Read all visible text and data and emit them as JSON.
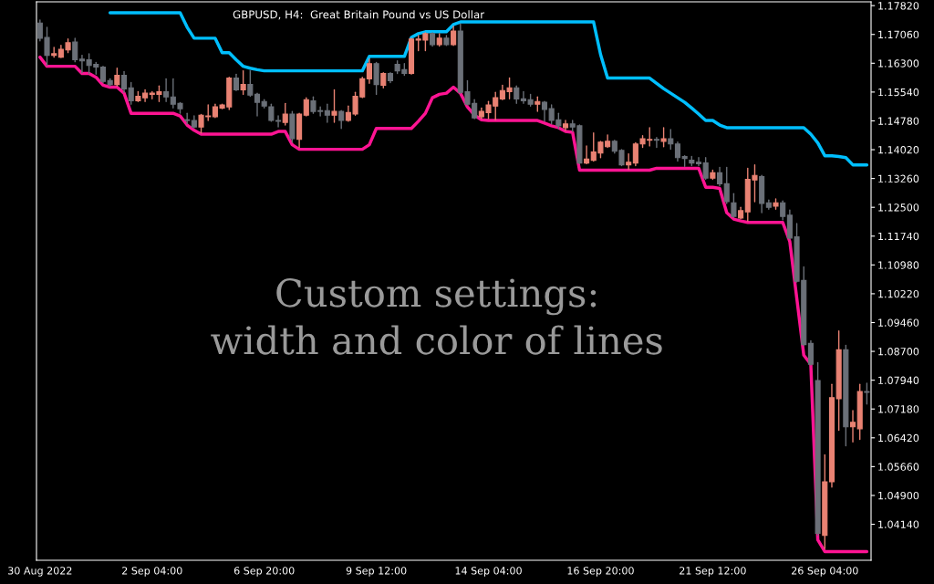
{
  "chart_data": {
    "type": "candlestick",
    "title": "GBPUSD, H4:  Great Britain Pound vs US Dollar",
    "annotations": [
      "Custom settings:\nwidth and color of lines"
    ],
    "categories": [
      "30 Aug 2022",
      null,
      null,
      null,
      null,
      null,
      null,
      null,
      null,
      null,
      null,
      null,
      null,
      null,
      null,
      null,
      "2 Sep 04:00",
      null,
      null,
      null,
      null,
      null,
      null,
      null,
      null,
      null,
      null,
      null,
      null,
      null,
      null,
      null,
      "6 Sep 20:00",
      null,
      null,
      null,
      null,
      null,
      null,
      null,
      null,
      null,
      null,
      null,
      null,
      null,
      null,
      null,
      "9 Sep 12:00",
      null,
      null,
      null,
      null,
      null,
      null,
      null,
      null,
      null,
      null,
      null,
      null,
      null,
      null,
      null,
      "14 Sep 04:00",
      null,
      null,
      null,
      null,
      null,
      null,
      null,
      null,
      null,
      null,
      null,
      null,
      null,
      null,
      null,
      "16 Sep 20:00",
      null,
      null,
      null,
      null,
      null,
      null,
      null,
      null,
      null,
      null,
      null,
      null,
      null,
      null,
      null,
      "21 Sep 12:00",
      null,
      null,
      null,
      null,
      null,
      null,
      null,
      null,
      null,
      null,
      null,
      null,
      null,
      null,
      null,
      "26 Sep 04:00",
      null,
      null,
      null,
      null,
      null,
      null
    ],
    "ohlc": [
      [
        1.1736,
        1.1744,
        1.1689,
        1.1696
      ],
      [
        1.1698,
        1.1725,
        1.1624,
        1.1651
      ],
      [
        1.1651,
        1.1672,
        1.1646,
        1.1655
      ],
      [
        1.1646,
        1.1677,
        1.1645,
        1.1667
      ],
      [
        1.1665,
        1.1694,
        1.1658,
        1.1684
      ],
      [
        1.1686,
        1.1696,
        1.1634,
        1.1639
      ],
      [
        1.1641,
        1.1651,
        1.1605,
        1.1636
      ],
      [
        1.1639,
        1.1655,
        1.1603,
        1.1624
      ],
      [
        1.1627,
        1.1632,
        1.1601,
        1.162
      ],
      [
        1.162,
        1.1622,
        1.1579,
        1.1582
      ],
      [
        1.1584,
        1.1589,
        1.157,
        1.1574
      ],
      [
        1.1574,
        1.1617,
        1.157,
        1.1598
      ],
      [
        1.1598,
        1.1608,
        1.1553,
        1.1562
      ],
      [
        1.1565,
        1.1579,
        1.1522,
        1.1531
      ],
      [
        1.1531,
        1.1555,
        1.1529,
        1.1543
      ],
      [
        1.1539,
        1.156,
        1.1529,
        1.1551
      ],
      [
        1.1548,
        1.1555,
        1.1536,
        1.1551
      ],
      [
        1.1548,
        1.157,
        1.1529,
        1.1555
      ],
      [
        1.1555,
        1.1589,
        1.1529,
        1.1541
      ],
      [
        1.1541,
        1.1589,
        1.1512,
        1.1522
      ],
      [
        1.1524,
        1.1526,
        1.1498,
        1.151
      ],
      [
        1.1481,
        1.1498,
        1.147,
        1.1479
      ],
      [
        1.1479,
        1.1491,
        1.146,
        1.1462
      ],
      [
        1.1462,
        1.1495,
        1.1446,
        1.1493
      ],
      [
        1.1489,
        1.152,
        1.1479,
        1.1491
      ],
      [
        1.1489,
        1.1522,
        1.1487,
        1.1515
      ],
      [
        1.1512,
        1.1522,
        1.151,
        1.152
      ],
      [
        1.1515,
        1.1593,
        1.1508,
        1.1591
      ],
      [
        1.1591,
        1.1601,
        1.1558,
        1.156
      ],
      [
        1.156,
        1.161,
        1.1548,
        1.1574
      ],
      [
        1.1574,
        1.161,
        1.1543,
        1.1546
      ],
      [
        1.1548,
        1.1551,
        1.1491,
        1.1527
      ],
      [
        1.1529,
        1.1534,
        1.1512,
        1.1517
      ],
      [
        1.1515,
        1.1522,
        1.1477,
        1.1479
      ],
      [
        1.1479,
        1.1491,
        1.1462,
        1.1477
      ],
      [
        1.1474,
        1.1524,
        1.1467,
        1.1496
      ],
      [
        1.1496,
        1.1503,
        1.1422,
        1.1431
      ],
      [
        1.1429,
        1.1498,
        1.1408,
        1.1496
      ],
      [
        1.1493,
        1.1539,
        1.1491,
        1.1534
      ],
      [
        1.1531,
        1.1541,
        1.1498,
        1.1503
      ],
      [
        1.1505,
        1.1515,
        1.1491,
        1.1503
      ],
      [
        1.1505,
        1.1522,
        1.1474,
        1.1493
      ],
      [
        1.1493,
        1.156,
        1.1474,
        1.1503
      ],
      [
        1.1503,
        1.1505,
        1.1458,
        1.1479
      ],
      [
        1.1479,
        1.1517,
        1.1477,
        1.15
      ],
      [
        1.1496,
        1.1553,
        1.1493,
        1.1543
      ],
      [
        1.1541,
        1.1593,
        1.1539,
        1.1589
      ],
      [
        1.1589,
        1.1641,
        1.1577,
        1.1629
      ],
      [
        1.1629,
        1.1632,
        1.1548,
        1.1574
      ],
      [
        1.1572,
        1.1605,
        1.1565,
        1.1603
      ],
      [
        1.1603,
        1.1605,
        1.1579,
        1.1584
      ],
      [
        1.1627,
        1.1636,
        1.1603,
        1.161
      ],
      [
        1.1613,
        1.1629,
        1.1598,
        1.1603
      ],
      [
        1.1603,
        1.1696,
        1.1601,
        1.1694
      ],
      [
        1.1691,
        1.1703,
        1.1663,
        1.1694
      ],
      [
        1.1691,
        1.171,
        1.1663,
        1.1708
      ],
      [
        1.1708,
        1.171,
        1.1675,
        1.1679
      ],
      [
        1.1679,
        1.1708,
        1.1675,
        1.1696
      ],
      [
        1.1696,
        1.1703,
        1.1677,
        1.1679
      ],
      [
        1.1679,
        1.1727,
        1.1677,
        1.1715
      ],
      [
        1.1715,
        1.1734,
        1.1551,
        1.1553
      ],
      [
        1.1555,
        1.1584,
        1.152,
        1.1522
      ],
      [
        1.1524,
        1.1534,
        1.1484,
        1.1486
      ],
      [
        1.1489,
        1.1512,
        1.1484,
        1.1503
      ],
      [
        1.15,
        1.1529,
        1.1484,
        1.152
      ],
      [
        1.1517,
        1.1553,
        1.1481,
        1.1539
      ],
      [
        1.1536,
        1.1572,
        1.1534,
        1.1558
      ],
      [
        1.1555,
        1.1591,
        1.1536,
        1.1565
      ],
      [
        1.1565,
        1.157,
        1.1524,
        1.1536
      ],
      [
        1.1536,
        1.1555,
        1.1524,
        1.1531
      ],
      [
        1.1534,
        1.1548,
        1.1517,
        1.1522
      ],
      [
        1.1522,
        1.1541,
        1.1503,
        1.1529
      ],
      [
        1.1527,
        1.1529,
        1.1477,
        1.1508
      ],
      [
        1.151,
        1.152,
        1.147,
        1.1479
      ],
      [
        1.1481,
        1.1498,
        1.1458,
        1.1465
      ],
      [
        1.146,
        1.1479,
        1.1453,
        1.147
      ],
      [
        1.147,
        1.1479,
        1.145,
        1.1462
      ],
      [
        1.1465,
        1.1467,
        1.1365,
        1.1367
      ],
      [
        1.1367,
        1.1412,
        1.1365,
        1.1377
      ],
      [
        1.1374,
        1.1446,
        1.1372,
        1.1396
      ],
      [
        1.1393,
        1.1424,
        1.1381,
        1.1422
      ],
      [
        1.141,
        1.1441,
        1.1408,
        1.1424
      ],
      [
        1.1424,
        1.1427,
        1.1393,
        1.1398
      ],
      [
        1.14,
        1.1402,
        1.136,
        1.1362
      ],
      [
        1.1362,
        1.1391,
        1.135,
        1.1369
      ],
      [
        1.1367,
        1.142,
        1.136,
        1.1417
      ],
      [
        1.1417,
        1.1439,
        1.1408,
        1.1431
      ],
      [
        1.1427,
        1.146,
        1.1412,
        1.1429
      ],
      [
        1.1429,
        1.1434,
        1.1408,
        1.1427
      ],
      [
        1.1424,
        1.146,
        1.141,
        1.1431
      ],
      [
        1.1431,
        1.1455,
        1.1403,
        1.1417
      ],
      [
        1.1417,
        1.1422,
        1.1372,
        1.1381
      ],
      [
        1.1384,
        1.1386,
        1.1358,
        1.1379
      ],
      [
        1.1374,
        1.1384,
        1.136,
        1.1367
      ],
      [
        1.1369,
        1.1381,
        1.136,
        1.1365
      ],
      [
        1.1367,
        1.1381,
        1.1324,
        1.1327
      ],
      [
        1.1327,
        1.1348,
        1.1324,
        1.1341
      ],
      [
        1.1341,
        1.1355,
        1.1307,
        1.1312
      ],
      [
        1.1312,
        1.1355,
        1.126,
        1.1265
      ],
      [
        1.1262,
        1.1286,
        1.1224,
        1.1226
      ],
      [
        1.1222,
        1.125,
        1.122,
        1.1241
      ],
      [
        1.1238,
        1.1353,
        1.1214,
        1.1324
      ],
      [
        1.1322,
        1.1362,
        1.1265,
        1.1334
      ],
      [
        1.1331,
        1.1334,
        1.1236,
        1.126
      ],
      [
        1.1262,
        1.1269,
        1.1245,
        1.125
      ],
      [
        1.1253,
        1.1272,
        1.1245,
        1.1262
      ],
      [
        1.1262,
        1.1267,
        1.1217,
        1.1226
      ],
      [
        1.1229,
        1.1243,
        1.1167,
        1.1169
      ],
      [
        1.1172,
        1.1207,
        1.1053,
        1.1055
      ],
      [
        1.1057,
        1.1093,
        1.0886,
        1.0888
      ],
      [
        1.0891,
        1.0898,
        1.0834,
        1.0836
      ],
      [
        1.0793,
        1.084,
        1.0385,
        1.039
      ],
      [
        1.0385,
        1.0597,
        1.035,
        1.0526
      ],
      [
        1.0526,
        1.0783,
        1.0512,
        1.0748
      ],
      [
        1.0745,
        1.0924,
        1.0662,
        1.0874
      ],
      [
        1.0874,
        1.0886,
        1.0621,
        1.0671
      ],
      [
        1.0671,
        1.0714,
        1.0631,
        1.0683
      ],
      [
        1.0666,
        1.0783,
        1.0638,
        1.0764
      ],
      [
        1.0764,
        1.0786,
        1.0731,
        1.0762
      ]
    ],
    "colors": [
      "#6b7078",
      "#6b7078",
      "#e98273",
      "#e98273",
      "#e98273",
      "#6b7078",
      "#6b7078",
      "#6b7078",
      "#6b7078",
      "#6b7078",
      "#6b7078",
      "#e98273",
      "#6b7078",
      "#6b7078",
      "#e98273",
      "#e98273",
      "#e98273",
      "#e98273",
      "#6b7078",
      "#6b7078",
      "#6b7078",
      "#6b7078",
      "#6b7078",
      "#e98273",
      "#e98273",
      "#e98273",
      "#e98273",
      "#e98273",
      "#6b7078",
      "#e98273",
      "#6b7078",
      "#6b7078",
      "#6b7078",
      "#6b7078",
      "#6b7078",
      "#e98273",
      "#6b7078",
      "#e98273",
      "#e98273",
      "#6b7078",
      "#6b7078",
      "#6b7078",
      "#e98273",
      "#6b7078",
      "#e98273",
      "#e98273",
      "#e98273",
      "#e98273",
      "#6b7078",
      "#e98273",
      "#6b7078",
      "#6b7078",
      "#6b7078",
      "#e98273",
      "#e98273",
      "#e98273",
      "#6b7078",
      "#e98273",
      "#6b7078",
      "#e98273",
      "#6b7078",
      "#6b7078",
      "#6b7078",
      "#e98273",
      "#e98273",
      "#e98273",
      "#e98273",
      "#e98273",
      "#6b7078",
      "#6b7078",
      "#6b7078",
      "#e98273",
      "#6b7078",
      "#6b7078",
      "#6b7078",
      "#e98273",
      "#6b7078",
      "#6b7078",
      "#e98273",
      "#e98273",
      "#e98273",
      "#e98273",
      "#6b7078",
      "#6b7078",
      "#e98273",
      "#e98273",
      "#e98273",
      "#e98273",
      "#6b7078",
      "#e98273",
      "#6b7078",
      "#6b7078",
      "#6b7078",
      "#6b7078",
      "#6b7078",
      "#6b7078",
      "#e98273",
      "#6b7078",
      "#6b7078",
      "#6b7078",
      "#e98273",
      "#e98273",
      "#e98273",
      "#6b7078",
      "#6b7078",
      "#e98273",
      "#6b7078",
      "#6b7078",
      "#6b7078",
      "#6b7078",
      "#6b7078",
      "#6b7078",
      "#e98273",
      "#e98273",
      "#e98273",
      "#6b7078",
      "#e98273",
      "#e98273",
      "#6b7078"
    ],
    "series": [
      {
        "type": "line",
        "color": "#00bfff",
        "values": [
          null,
          null,
          null,
          null,
          null,
          null,
          null,
          null,
          null,
          null,
          1.1763,
          1.1763,
          1.1763,
          1.1763,
          1.1763,
          1.1763,
          1.1763,
          1.1763,
          1.1763,
          1.1763,
          1.1763,
          1.1725,
          1.1696,
          1.1696,
          1.1696,
          1.1696,
          1.1658,
          1.1658,
          1.1639,
          1.1622,
          1.1617,
          1.1613,
          1.161,
          1.161,
          1.161,
          1.161,
          1.161,
          1.161,
          1.161,
          1.161,
          1.161,
          1.161,
          1.161,
          1.161,
          1.161,
          1.161,
          1.161,
          1.1648,
          1.1648,
          1.1648,
          1.1648,
          1.1648,
          1.1648,
          1.1698,
          1.1708,
          1.1713,
          1.1713,
          1.1713,
          1.1713,
          1.1732,
          1.1739,
          1.1739,
          1.1739,
          1.1739,
          1.1739,
          1.1739,
          1.1739,
          1.1739,
          1.1739,
          1.1739,
          1.1739,
          1.1739,
          1.1739,
          1.1739,
          1.1739,
          1.1739,
          1.1739,
          1.1739,
          1.1739,
          1.1739,
          1.1653,
          1.1591,
          1.1591,
          1.1591,
          1.1591,
          1.1591,
          1.1591,
          1.1591,
          1.1577,
          1.1563,
          1.1551,
          1.1539,
          1.1527,
          1.1512,
          1.1496,
          1.1479,
          1.1479,
          1.1467,
          1.146,
          1.146,
          1.146,
          1.146,
          1.146,
          1.146,
          1.146,
          1.146,
          1.146,
          1.146,
          1.146,
          1.146,
          1.1443,
          1.142,
          1.1386,
          1.1386,
          1.1384,
          1.1381,
          1.1362,
          1.1362,
          1.1362
        ]
      },
      {
        "type": "line",
        "color": "#ff1493",
        "values": [
          1.1646,
          1.1622,
          1.1622,
          1.1622,
          1.1622,
          1.1622,
          1.1603,
          1.1603,
          1.1593,
          1.1572,
          1.1567,
          1.1567,
          1.1551,
          1.1498,
          1.1498,
          1.1498,
          1.1498,
          1.1498,
          1.1498,
          1.1498,
          1.1491,
          1.1467,
          1.1453,
          1.1443,
          1.1443,
          1.1443,
          1.1443,
          1.1443,
          1.1443,
          1.1443,
          1.1443,
          1.1443,
          1.1443,
          1.1443,
          1.145,
          1.145,
          1.1415,
          1.1403,
          1.1403,
          1.1403,
          1.1403,
          1.1403,
          1.1403,
          1.1403,
          1.1403,
          1.1403,
          1.1403,
          1.1415,
          1.1458,
          1.1458,
          1.1458,
          1.1458,
          1.1458,
          1.1458,
          1.1477,
          1.1498,
          1.1539,
          1.1548,
          1.1551,
          1.1567,
          1.1551,
          1.1515,
          1.1493,
          1.1481,
          1.1479,
          1.1479,
          1.1479,
          1.1479,
          1.1479,
          1.1479,
          1.1479,
          1.1479,
          1.1472,
          1.1465,
          1.146,
          1.145,
          1.1448,
          1.1348,
          1.1348,
          1.1348,
          1.1348,
          1.1348,
          1.1348,
          1.1348,
          1.1348,
          1.1348,
          1.1348,
          1.1348,
          1.1353,
          1.1353,
          1.1353,
          1.1353,
          1.1353,
          1.1353,
          1.1353,
          1.1303,
          1.1303,
          1.13,
          1.1236,
          1.1219,
          1.1214,
          1.121,
          1.121,
          1.121,
          1.121,
          1.121,
          1.121,
          1.116,
          1.101,
          1.086,
          1.0836,
          1.0373,
          1.0342,
          1.0342,
          1.0342,
          1.0342,
          1.0342,
          1.0342,
          1.0342
        ]
      }
    ],
    "ylim": [
      1.0319,
      1.1792
    ],
    "yticks": [
      {
        "value": 1.0414,
        "label": "1.04140"
      },
      {
        "value": 1.049,
        "label": "1.04900"
      },
      {
        "value": 1.0566,
        "label": "1.05660"
      },
      {
        "value": 1.0642,
        "label": "1.06420"
      },
      {
        "value": 1.0718,
        "label": "1.07180"
      },
      {
        "value": 1.0794,
        "label": "1.07940"
      },
      {
        "value": 1.087,
        "label": "1.08700"
      },
      {
        "value": 1.0946,
        "label": "1.09460"
      },
      {
        "value": 1.1022,
        "label": "1.10220"
      },
      {
        "value": 1.1098,
        "label": "1.10980"
      },
      {
        "value": 1.1174,
        "label": "1.11740"
      },
      {
        "value": 1.125,
        "label": "1.12500"
      },
      {
        "value": 1.1326,
        "label": "1.13260"
      },
      {
        "value": 1.1402,
        "label": "1.14020"
      },
      {
        "value": 1.1478,
        "label": "1.14780"
      },
      {
        "value": 1.1554,
        "label": "1.15540"
      },
      {
        "value": 1.163,
        "label": "1.16300"
      },
      {
        "value": 1.1706,
        "label": "1.17060"
      },
      {
        "value": 1.1782,
        "label": "1.17820"
      }
    ],
    "grid": false
  }
}
